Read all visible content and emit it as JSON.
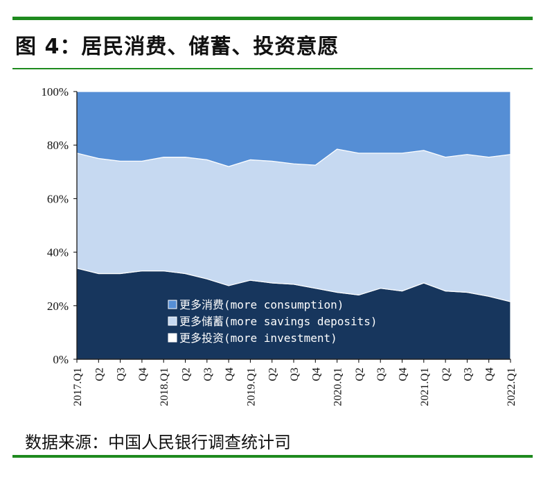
{
  "figure": {
    "title": "图 4：居民消费、储蓄、投资意愿",
    "source": "数据来源：中国人民银行调查统计司"
  },
  "chart_data": {
    "type": "area",
    "stacked": true,
    "title": "",
    "xlabel": "",
    "ylabel": "",
    "ylim": [
      0,
      100
    ],
    "y_ticks": [
      "0%",
      "20%",
      "40%",
      "60%",
      "80%",
      "100%"
    ],
    "x": [
      "2017.Q1",
      "Q2",
      "Q3",
      "Q4",
      "2018.Q1",
      "Q2",
      "Q3",
      "Q4",
      "2019.Q1",
      "Q2",
      "Q3",
      "Q4",
      "2020.Q1",
      "Q2",
      "Q3",
      "Q4",
      "2021.Q1",
      "Q2",
      "Q3",
      "Q4",
      "2022.Q1"
    ],
    "series": [
      {
        "name": "更多投资(more investment)",
        "color": "#17365d",
        "values": [
          34,
          32,
          32,
          33,
          33,
          32,
          30,
          27.5,
          29.5,
          28.5,
          28,
          26.5,
          25,
          24,
          26.5,
          25.5,
          28.5,
          25.5,
          25,
          23.5,
          21.5
        ]
      },
      {
        "name": "更多储蓄(more savings deposits)",
        "color": "#c6d9f1",
        "values": [
          43,
          43,
          42,
          41,
          42.5,
          43.5,
          44.5,
          44.5,
          45,
          45.5,
          45,
          46,
          53.5,
          53,
          50.5,
          51.5,
          49.5,
          50,
          51.5,
          52,
          55
        ]
      },
      {
        "name": "更多消费(more consumption)",
        "color": "#558ed5",
        "values": [
          23,
          25,
          26,
          26,
          24.5,
          24.5,
          25.5,
          28,
          25.5,
          26,
          27,
          27.5,
          21.5,
          23,
          23,
          23,
          22,
          24.5,
          23.5,
          24.5,
          23.5
        ]
      }
    ],
    "legend": {
      "position": "bottom-center inside plot",
      "entries": [
        "更多消费(more consumption)",
        "更多储蓄(more savings deposits)",
        "更多投资(more investment)"
      ],
      "swatch_colors": [
        "#558ed5",
        "#c6d9f1",
        "#ffffff"
      ]
    },
    "grid": false
  }
}
